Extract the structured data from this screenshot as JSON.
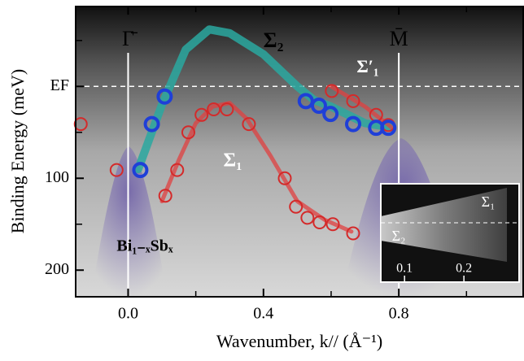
{
  "chart_data": {
    "type": "scatter",
    "xlabel": "Wavenumber, k// (Å⁻¹)",
    "ylabel": "Binding Energy (meV)",
    "xlim": [
      -0.155,
      1.17
    ],
    "ylim": [
      -87,
      229
    ],
    "y_inverted": true,
    "xticks": [
      {
        "value": 0,
        "label": "0.0"
      },
      0.4,
      0.8
    ],
    "xminorticks": [
      0.2,
      0.6,
      1.0
    ],
    "yticks": [
      {
        "value": 0,
        "label": "EF"
      },
      100,
      200
    ],
    "yminorticks": [
      -50,
      50,
      150
    ],
    "fermi_line_color": "#ffffff",
    "symmetry_points": [
      {
        "label": "Γ̄",
        "x": 0
      },
      {
        "label": "M̄",
        "x": 0.8
      }
    ],
    "annotations": [
      "Σ₂",
      "Σ₁",
      "Σ′₁",
      "Bi₁₋ₓSbₓ"
    ],
    "series": [
      {
        "color": "#d42a2a",
        "x": [
          -0.14,
          -0.034,
          0.11,
          0.145,
          0.178,
          0.217,
          0.253,
          0.292,
          0.357,
          0.463,
          0.496,
          0.53,
          0.566,
          0.605,
          0.665,
          0.602,
          0.665,
          0.733,
          0.769
        ],
        "values": [
          41,
          91,
          119,
          91,
          50,
          31,
          25,
          25,
          41,
          100,
          131,
          143,
          148,
          150,
          160,
          5,
          16,
          31,
          42
        ]
      },
      {
        "color": "#1f3fd8",
        "x": [
          0.036,
          0.07,
          0.108,
          0.525,
          0.564,
          0.598,
          0.665,
          0.733,
          0.769
        ],
        "values": [
          91,
          41,
          11,
          16,
          21,
          30,
          41,
          45,
          45
        ]
      }
    ],
    "bands": [
      {
        "color": "#2aa8a0",
        "x": [
          0.03,
          0.1,
          0.17,
          0.24,
          0.3,
          0.4,
          0.5,
          0.55,
          0.6,
          0.7,
          0.78
        ],
        "values": [
          90,
          20,
          -40,
          -62,
          -58,
          -35,
          0,
          15,
          22,
          40,
          45
        ]
      },
      {
        "color": "#e04040",
        "x": [
          0.1,
          0.15,
          0.2,
          0.25,
          0.3,
          0.35,
          0.42,
          0.5,
          0.58,
          0.66
        ],
        "values": [
          125,
          80,
          40,
          22,
          18,
          35,
          75,
          125,
          145,
          158
        ]
      },
      {
        "color": "#e04040",
        "x": [
          0.6,
          0.7,
          0.78
        ],
        "values": [
          0,
          22,
          45
        ]
      }
    ],
    "inset": {
      "xlim": [
        0.06,
        0.293
      ],
      "xticks": [
        0.1,
        0.2
      ],
      "labels": [
        "Σ₁",
        "Σ₂"
      ]
    }
  }
}
